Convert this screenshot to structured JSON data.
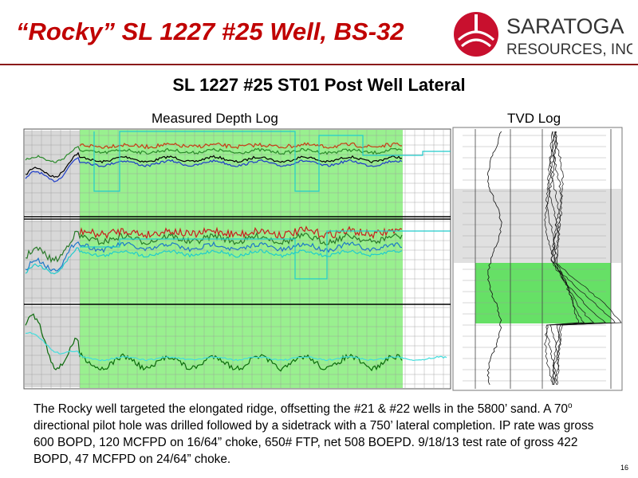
{
  "header": {
    "title": "“Rocky” SL 1227 #25 Well, BS-32",
    "logo": {
      "name": "SARATOGA",
      "subname": "RESOURCES, INC."
    }
  },
  "subtitle": "SL 1227 #25 ST01 Post Well Lateral",
  "panels": [
    {
      "label": "Measured Depth Log"
    },
    {
      "label": "TVD Log"
    }
  ],
  "paragraph": {
    "parts": [
      "The Rocky well targeted the elongated ridge, offsetting the #21 & #22 wells in the 5800’ sand.  A 70",
      "o",
      " directional pilot hole was drilled followed by a sidetrack with a 750’ lateral completion. IP rate was gross 600 BOPD, 120 MCFPD on 16/64” choke, 650# FTP, net 508 BOEPD. 9/18/13 test rate of gross 422 BOPD, 47 MCFPD on 24/64” choke."
    ]
  },
  "page_number": "16"
}
